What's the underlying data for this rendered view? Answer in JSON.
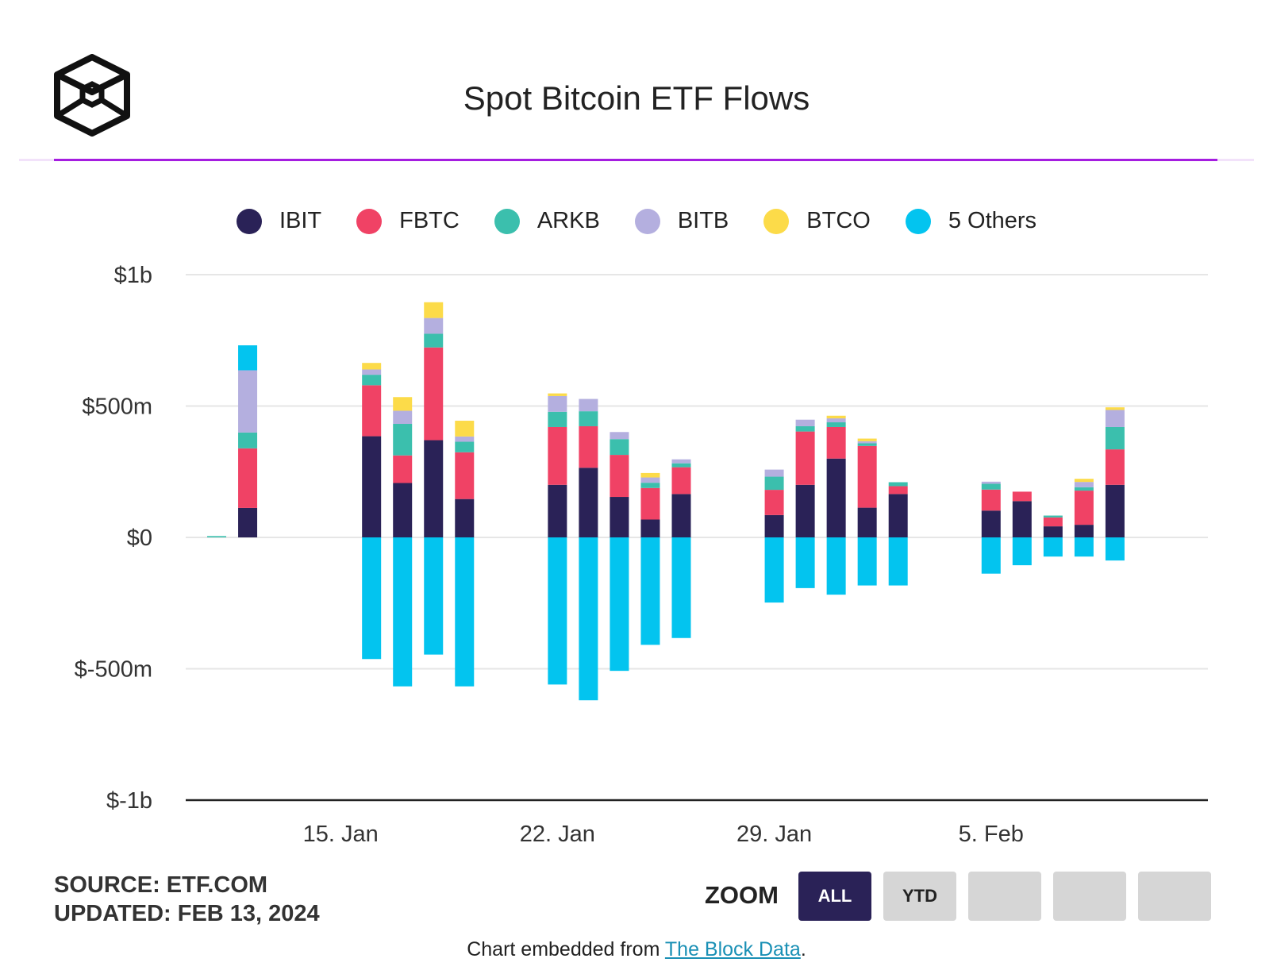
{
  "title": "Spot Bitcoin ETF Flows",
  "source": "SOURCE: ETF.COM",
  "updated": "UPDATED: FEB 13, 2024",
  "zoom": {
    "label": "ZOOM",
    "buttons": [
      "ALL",
      "YTD",
      "",
      "",
      ""
    ],
    "active": "ALL"
  },
  "embed": {
    "prefix": "Chart embedded from ",
    "link_text": "The Block Data",
    "suffix": "."
  },
  "chart_data": {
    "type": "bar",
    "stacked": true,
    "ylim": [
      -1000,
      1000
    ],
    "yticks": [
      {
        "value": 1000,
        "label": "$1b"
      },
      {
        "value": 500,
        "label": "$500m"
      },
      {
        "value": 0,
        "label": "$0"
      },
      {
        "value": -500,
        "label": "$-500m"
      },
      {
        "value": -1000,
        "label": "$-1b"
      }
    ],
    "xticks": [
      {
        "value": "2024-01-15",
        "label": "15. Jan"
      },
      {
        "value": "2024-01-22",
        "label": "22. Jan"
      },
      {
        "value": "2024-01-29",
        "label": "29. Jan"
      },
      {
        "value": "2024-02-05",
        "label": "5. Feb"
      }
    ],
    "xlim": [
      "2024-01-10",
      "2024-02-12"
    ],
    "grid": true,
    "legend_position": "top-center",
    "x": [
      "2024-01-11",
      "2024-01-12",
      "2024-01-16",
      "2024-01-17",
      "2024-01-18",
      "2024-01-19",
      "2024-01-22",
      "2024-01-23",
      "2024-01-24",
      "2024-01-25",
      "2024-01-26",
      "2024-01-29",
      "2024-01-30",
      "2024-01-31",
      "2024-02-01",
      "2024-02-02",
      "2024-02-05",
      "2024-02-06",
      "2024-02-07",
      "2024-02-08",
      "2024-02-09"
    ],
    "series": [
      {
        "name": "IBIT",
        "color": "#2a2257",
        "values": [
          0,
          112,
          385,
          207,
          370,
          146,
          200,
          265,
          154,
          68,
          165,
          85,
          200,
          300,
          113,
          165,
          102,
          138,
          42,
          48,
          200
        ]
      },
      {
        "name": "FBTC",
        "color": "#f04265",
        "values": [
          0,
          227,
          194,
          105,
          353,
          178,
          220,
          158,
          160,
          120,
          102,
          96,
          203,
          120,
          235,
          30,
          80,
          36,
          34,
          130,
          135
        ]
      },
      {
        "name": "ARKB",
        "color": "#3bbfad",
        "values": [
          5,
          60,
          40,
          120,
          52,
          40,
          58,
          57,
          60,
          20,
          15,
          50,
          20,
          18,
          10,
          15,
          22,
          0,
          7,
          13,
          85
        ]
      },
      {
        "name": "BITB",
        "color": "#b4afdf",
        "values": [
          0,
          237,
          20,
          50,
          60,
          20,
          60,
          47,
          27,
          20,
          15,
          27,
          25,
          15,
          8,
          0,
          8,
          0,
          0,
          20,
          65
        ]
      },
      {
        "name": "BTCO",
        "color": "#fcdb49",
        "values": [
          0,
          0,
          25,
          52,
          60,
          60,
          10,
          0,
          0,
          17,
          0,
          0,
          0,
          10,
          10,
          0,
          0,
          0,
          0,
          12,
          10
        ]
      },
      {
        "name": "5 Others",
        "color": "#03c4ef",
        "values": [
          0,
          95,
          -463,
          -567,
          -446,
          -567,
          -560,
          -620,
          -508,
          -409,
          -383,
          -248,
          -193,
          -218,
          -183,
          -183,
          -138,
          -106,
          -73,
          -73,
          -88
        ]
      }
    ]
  }
}
